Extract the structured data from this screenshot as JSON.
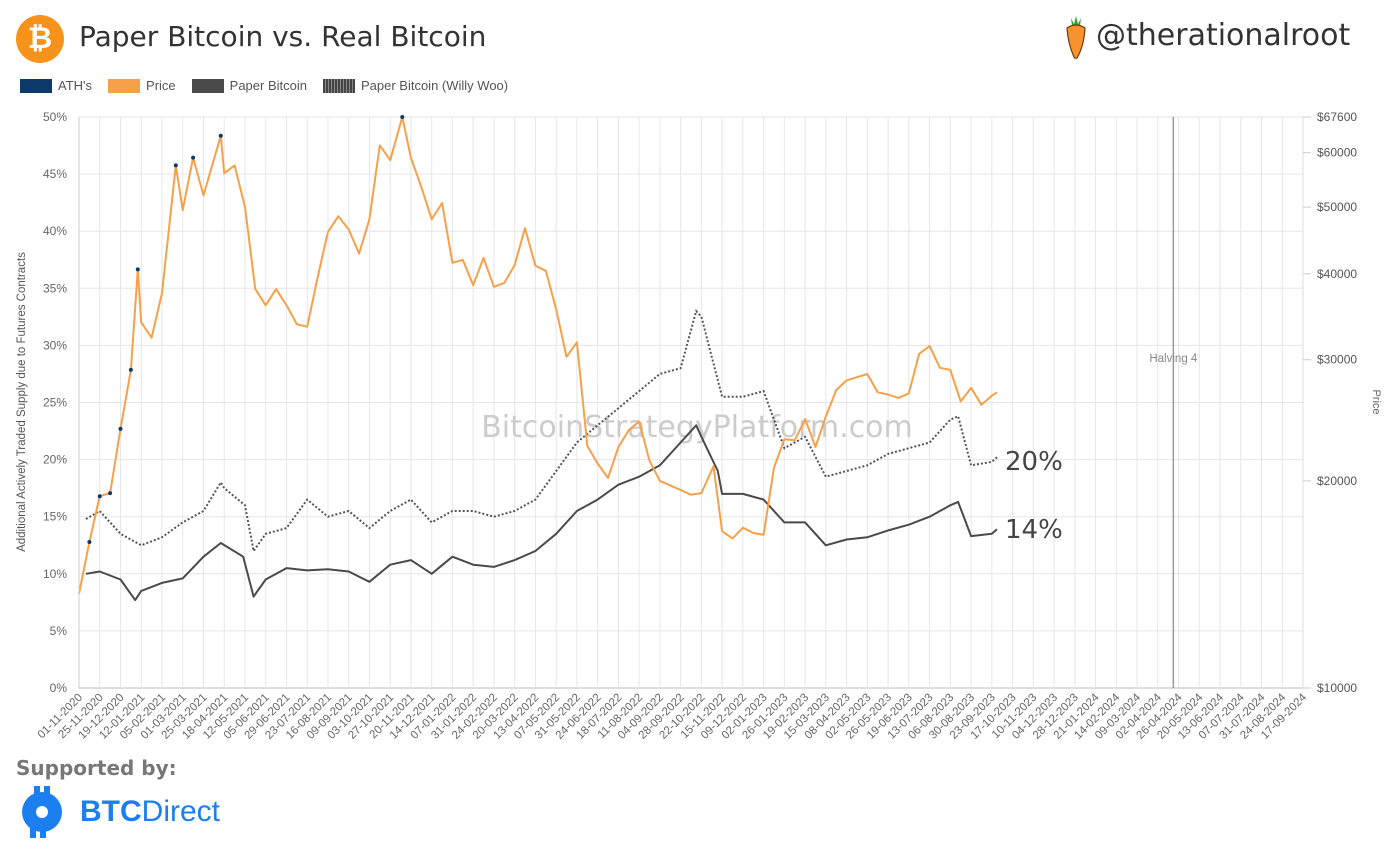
{
  "header": {
    "title": "Paper Bitcoin vs. Real Bitcoin",
    "handle": "@therationalroot",
    "logo_icon": "bitcoin-icon"
  },
  "footer": {
    "supported_by": "Supported by:",
    "sponsor_bold": "BTC",
    "sponsor_rest": "Direct"
  },
  "colors": {
    "ath": "#0d3a6b",
    "price": "#f7a04a",
    "paper": "#4a4a4a",
    "woo": "#555555",
    "brand": "#f7931a",
    "sponsor": "#1b7ff0"
  },
  "chart_data": {
    "type": "line",
    "title": "Paper Bitcoin vs. Real Bitcoin",
    "watermark": "BitcoinStrategyPlatform.com",
    "ylabel": "Additional Actively Traded Supply due to Futures Contracts",
    "y2label": "Price",
    "ylim": [
      0,
      50
    ],
    "y2lim": [
      10000,
      67600
    ],
    "y2scale": "log",
    "xlim": [
      "01-11-2020",
      "17-09-2024"
    ],
    "grid": true,
    "legend_position": "top-left",
    "legend": [
      "ATH's",
      "Price",
      "Paper Bitcoin",
      "Paper Bitcoin (Willy Woo)"
    ],
    "yticks": [
      "0%",
      "5%",
      "10%",
      "15%",
      "20%",
      "25%",
      "30%",
      "35%",
      "40%",
      "45%",
      "50%"
    ],
    "y2ticks": [
      {
        "value": 67600,
        "label": "$67600"
      },
      {
        "value": 60000,
        "label": "$60000"
      },
      {
        "value": 50000,
        "label": "$50000"
      },
      {
        "value": 40000,
        "label": "$40000"
      },
      {
        "value": 30000,
        "label": "$30000"
      },
      {
        "value": 20000,
        "label": "$20000"
      },
      {
        "value": 10000,
        "label": "$10000"
      }
    ],
    "xticks": [
      "01-11-2020",
      "25-11-2020",
      "19-12-2020",
      "12-01-2021",
      "05-02-2021",
      "01-03-2021",
      "25-03-2021",
      "18-04-2021",
      "12-05-2021",
      "05-06-2021",
      "29-06-2021",
      "23-07-2021",
      "16-08-2021",
      "09-09-2021",
      "03-10-2021",
      "27-10-2021",
      "20-11-2021",
      "14-12-2021",
      "07-01-2022",
      "31-01-2022",
      "24-02-2022",
      "20-03-2022",
      "13-04-2022",
      "07-05-2022",
      "31-05-2022",
      "24-06-2022",
      "18-07-2022",
      "11-08-2022",
      "04-09-2022",
      "28-09-2022",
      "22-10-2022",
      "15-11-2022",
      "09-12-2022",
      "02-01-2023",
      "26-01-2023",
      "19-02-2023",
      "15-03-2023",
      "08-04-2023",
      "02-05-2023",
      "26-05-2023",
      "19-06-2023",
      "13-07-2023",
      "06-08-2023",
      "30-08-2023",
      "23-09-2023",
      "17-10-2023",
      "10-11-2023",
      "04-12-2023",
      "28-12-2023",
      "21-01-2024",
      "14-02-2024",
      "09-03-2024",
      "02-04-2024",
      "26-04-2024",
      "20-05-2024",
      "13-06-2024",
      "07-07-2024",
      "31-07-2024",
      "24-08-2024",
      "17-09-2024"
    ],
    "annotations": [
      {
        "label": "Halving 4",
        "x": "20-04-2024"
      },
      {
        "label": "20%",
        "series": "Paper Bitcoin (Willy Woo)"
      },
      {
        "label": "14%",
        "series": "Paper Bitcoin"
      }
    ],
    "series": [
      {
        "name": "Price",
        "axis": "right",
        "x": [
          "01-11-2020",
          "13-11-2020",
          "25-11-2020",
          "07-12-2020",
          "19-12-2020",
          "31-12-2020",
          "08-01-2021",
          "12-01-2021",
          "24-01-2021",
          "05-02-2021",
          "21-02-2021",
          "01-03-2021",
          "13-03-2021",
          "25-03-2021",
          "14-04-2021",
          "18-04-2021",
          "30-04-2021",
          "12-05-2021",
          "24-05-2021",
          "05-06-2021",
          "17-06-2021",
          "29-06-2021",
          "11-07-2021",
          "23-07-2021",
          "04-08-2021",
          "16-08-2021",
          "28-08-2021",
          "09-09-2021",
          "21-09-2021",
          "03-10-2021",
          "15-10-2021",
          "27-10-2021",
          "10-11-2021",
          "20-11-2021",
          "02-12-2021",
          "14-12-2021",
          "26-12-2021",
          "07-01-2022",
          "19-01-2022",
          "31-01-2022",
          "12-02-2022",
          "24-02-2022",
          "08-03-2022",
          "20-03-2022",
          "01-04-2022",
          "13-04-2022",
          "25-04-2022",
          "07-05-2022",
          "19-05-2022",
          "31-05-2022",
          "12-06-2022",
          "24-06-2022",
          "06-07-2022",
          "18-07-2022",
          "30-07-2022",
          "11-08-2022",
          "23-08-2022",
          "04-09-2022",
          "16-09-2022",
          "28-09-2022",
          "10-10-2022",
          "22-10-2022",
          "05-11-2022",
          "15-11-2022",
          "27-11-2022",
          "09-12-2022",
          "21-12-2022",
          "02-01-2023",
          "14-01-2023",
          "26-01-2023",
          "07-02-2023",
          "19-02-2023",
          "03-03-2023",
          "15-03-2023",
          "27-03-2023",
          "08-04-2023",
          "20-04-2023",
          "02-05-2023",
          "14-05-2023",
          "26-05-2023",
          "07-06-2023",
          "19-06-2023",
          "01-07-2023",
          "13-07-2023",
          "25-07-2023",
          "06-08-2023",
          "18-08-2023",
          "30-08-2023",
          "11-09-2023",
          "23-09-2023",
          "29-09-2023"
        ],
        "values": [
          13700,
          16300,
          19000,
          19200,
          23800,
          29000,
          40600,
          34000,
          32300,
          37500,
          57500,
          49500,
          59000,
          52000,
          63500,
          56000,
          57500,
          50000,
          38000,
          36000,
          38000,
          36000,
          33800,
          33500,
          39500,
          46000,
          48500,
          46400,
          42800,
          48000,
          61500,
          58500,
          67600,
          59000,
          53500,
          48000,
          50700,
          41500,
          41900,
          38500,
          42200,
          38300,
          38800,
          41200,
          46600,
          41100,
          40400,
          35500,
          30300,
          31800,
          22500,
          21200,
          20200,
          22400,
          23700,
          24400,
          21400,
          20000,
          19700,
          19400,
          19100,
          19200,
          21000,
          16900,
          16500,
          17100,
          16800,
          16700,
          20900,
          23000,
          22900,
          24600,
          22400,
          24800,
          27100,
          28000,
          28300,
          28600,
          26900,
          26700,
          26400,
          26800,
          30600,
          31400,
          29200,
          29000,
          26100,
          27300,
          25800,
          26600,
          26900
        ]
      },
      {
        "name": "Paper Bitcoin",
        "axis": "left",
        "x": [
          "09-11-2020",
          "25-11-2020",
          "19-12-2020",
          "05-01-2021",
          "12-01-2021",
          "05-02-2021",
          "01-03-2021",
          "25-03-2021",
          "14-04-2021",
          "10-05-2021",
          "22-05-2021",
          "05-06-2021",
          "29-06-2021",
          "23-07-2021",
          "16-08-2021",
          "09-09-2021",
          "03-10-2021",
          "27-10-2021",
          "20-11-2021",
          "14-12-2021",
          "07-01-2022",
          "31-01-2022",
          "24-02-2022",
          "20-03-2022",
          "13-04-2022",
          "07-05-2022",
          "31-05-2022",
          "24-06-2022",
          "18-07-2022",
          "11-08-2022",
          "04-09-2022",
          "28-09-2022",
          "16-10-2022",
          "22-10-2022",
          "10-11-2022",
          "15-11-2022",
          "09-12-2022",
          "02-01-2023",
          "26-01-2023",
          "19-02-2023",
          "15-03-2023",
          "08-04-2023",
          "02-05-2023",
          "26-05-2023",
          "19-06-2023",
          "13-07-2023",
          "06-08-2023",
          "15-08-2023",
          "30-08-2023",
          "23-09-2023",
          "29-09-2023"
        ],
        "values": [
          10.0,
          10.2,
          9.5,
          7.7,
          8.5,
          9.2,
          9.6,
          11.5,
          12.7,
          11.5,
          8.0,
          9.5,
          10.5,
          10.3,
          10.4,
          10.2,
          9.3,
          10.8,
          11.2,
          10.0,
          11.5,
          10.8,
          10.6,
          11.2,
          12.0,
          13.5,
          15.5,
          16.5,
          17.8,
          18.5,
          19.5,
          21.5,
          23.0,
          22.0,
          19.0,
          17.0,
          17.0,
          16.5,
          14.5,
          14.5,
          12.5,
          13.0,
          13.2,
          13.8,
          14.3,
          15.0,
          16.0,
          16.3,
          13.3,
          13.5,
          13.9
        ]
      },
      {
        "name": "Paper Bitcoin (Willy Woo)",
        "axis": "left",
        "x": [
          "09-11-2020",
          "25-11-2020",
          "19-12-2020",
          "12-01-2021",
          "05-02-2021",
          "01-03-2021",
          "25-03-2021",
          "14-04-2021",
          "18-04-2021",
          "12-05-2021",
          "22-05-2021",
          "05-06-2021",
          "29-06-2021",
          "23-07-2021",
          "16-08-2021",
          "09-09-2021",
          "03-10-2021",
          "27-10-2021",
          "20-11-2021",
          "14-12-2021",
          "07-01-2022",
          "31-01-2022",
          "24-02-2022",
          "20-03-2022",
          "13-04-2022",
          "07-05-2022",
          "31-05-2022",
          "24-06-2022",
          "18-07-2022",
          "11-08-2022",
          "04-09-2022",
          "28-09-2022",
          "16-10-2022",
          "22-10-2022",
          "15-11-2022",
          "09-12-2022",
          "02-01-2023",
          "26-01-2023",
          "19-02-2023",
          "15-03-2023",
          "08-04-2023",
          "02-05-2023",
          "26-05-2023",
          "19-06-2023",
          "13-07-2023",
          "06-08-2023",
          "15-08-2023",
          "30-08-2023",
          "23-09-2023",
          "29-09-2023"
        ],
        "values": [
          14.8,
          15.5,
          13.5,
          12.5,
          13.2,
          14.5,
          15.5,
          18.0,
          17.5,
          16.0,
          12.0,
          13.5,
          14.0,
          16.5,
          15.0,
          15.5,
          14.0,
          15.5,
          16.5,
          14.5,
          15.5,
          15.5,
          15.0,
          15.5,
          16.5,
          19.0,
          21.5,
          23.0,
          24.5,
          26.0,
          27.5,
          28.0,
          33.0,
          32.5,
          25.5,
          25.5,
          26.0,
          21.0,
          22.0,
          18.5,
          19.0,
          19.5,
          20.5,
          21.0,
          21.5,
          23.5,
          23.8,
          19.5,
          19.8,
          20.2
        ]
      }
    ]
  }
}
